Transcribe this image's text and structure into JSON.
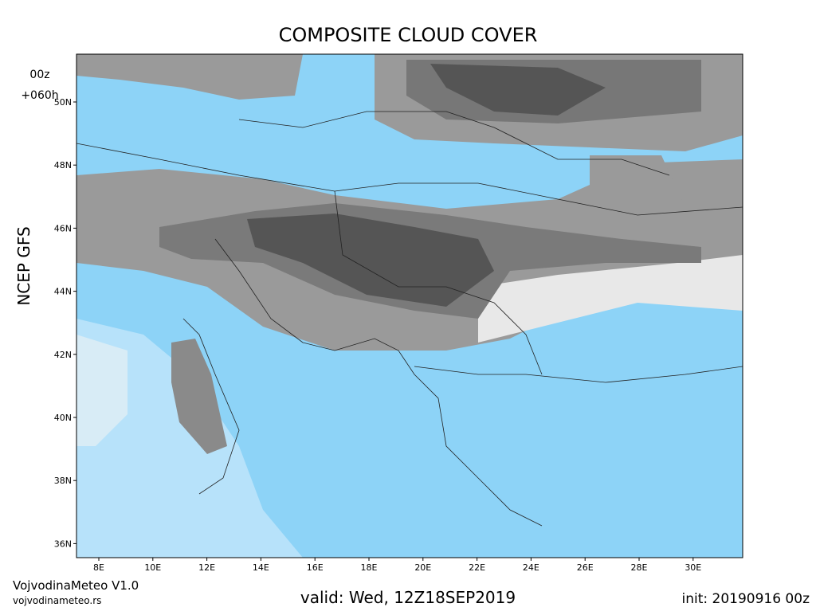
{
  "header": {
    "title": "COMPOSITE CLOUD COVER",
    "run": "00z",
    "lead": "+060h",
    "model": "NCEP GFS"
  },
  "map": {
    "lat_labels": [
      "50N",
      "48N",
      "46N",
      "44N",
      "42N",
      "40N",
      "38N",
      "36N"
    ],
    "lon_labels": [
      "8E",
      "10E",
      "12E",
      "14E",
      "16E",
      "18E",
      "20E",
      "22E",
      "24E",
      "26E",
      "28E",
      "30E"
    ]
  },
  "footer": {
    "brand": "VojvodinaMeteo V1.0",
    "site": "vojvodinameteo.rs",
    "valid": "valid: Wed, 12Z18SEP2019",
    "init": "init: 20190916 00z"
  }
}
